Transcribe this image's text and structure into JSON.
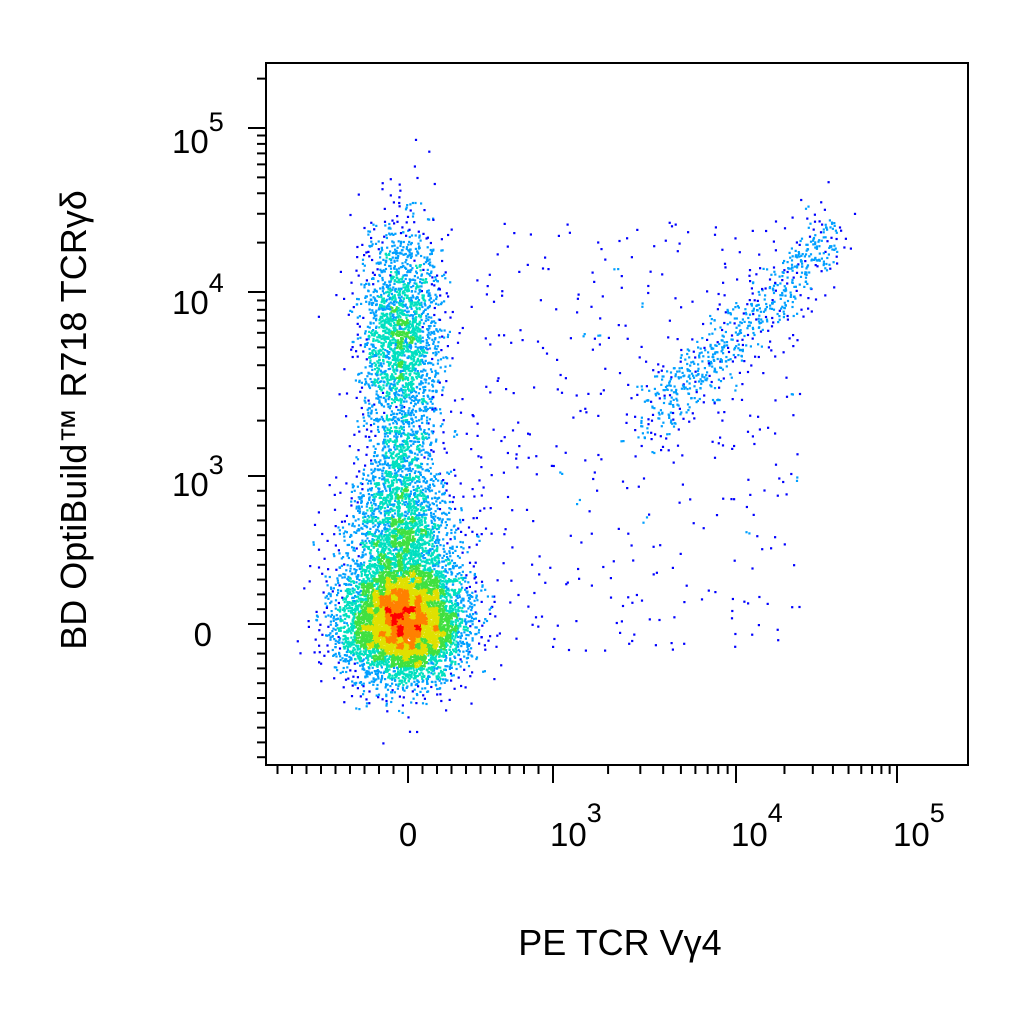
{
  "chart_data": {
    "type": "scatter",
    "subtype": "flow-cytometry-density-pseudocolor",
    "title": "",
    "xlabel": "PE TCR Vγ4",
    "ylabel": "BD OptiBuild™ R718 TCRγδ",
    "x_scale": "biexponential",
    "y_scale": "biexponential",
    "xlim": [
      -250,
      100000
    ],
    "ylim": [
      -250,
      200000
    ],
    "grid": false,
    "legend": "none",
    "x_ticks": [
      {
        "base": "0",
        "exp": "",
        "value": 0
      },
      {
        "base": "10",
        "exp": "3",
        "value": 1000
      },
      {
        "base": "10",
        "exp": "4",
        "value": 10000
      },
      {
        "base": "10",
        "exp": "5",
        "value": 100000
      }
    ],
    "y_ticks": [
      {
        "base": "0",
        "exp": "",
        "value": 0
      },
      {
        "base": "10",
        "exp": "3",
        "value": 1000
      },
      {
        "base": "10",
        "exp": "4",
        "value": 10000
      },
      {
        "base": "10",
        "exp": "5",
        "value": 100000
      }
    ],
    "populations": [
      {
        "name": "TCRγδ− Vγ4−",
        "x_center": 0,
        "y_center": 0,
        "density": "very high"
      },
      {
        "name": "TCRγδ+ Vγ4−",
        "x_center": 0,
        "y_center": 6000,
        "density": "medium"
      },
      {
        "name": "TCRγδ+ Vγ4+",
        "x_range": [
          3000,
          30000
        ],
        "y_range": [
          3000,
          30000
        ],
        "density": "low"
      }
    ],
    "colormap": [
      "#0000ff",
      "#00a0ff",
      "#00e0c0",
      "#40e040",
      "#e0e000",
      "#ff8000",
      "#ff0000"
    ]
  }
}
